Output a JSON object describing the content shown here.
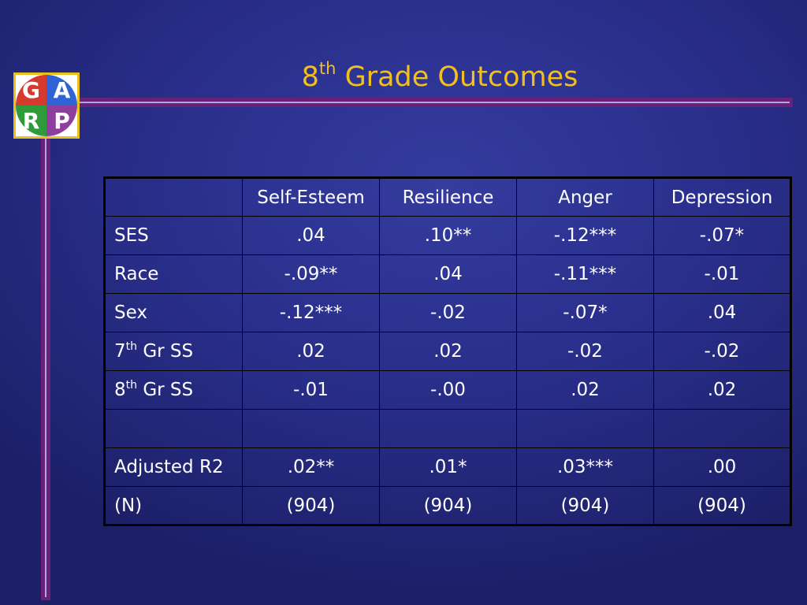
{
  "slide": {
    "title_main": "8",
    "title_sup": "th",
    "title_rest": " Grade Outcomes"
  },
  "logo": {
    "letters": [
      "G",
      "A",
      "R",
      "P"
    ],
    "colors": {
      "red": "#d63a2e",
      "blue": "#2f63d6",
      "green": "#2f9a3a",
      "purple": "#8e3f9e",
      "frame": "#e8c020"
    }
  },
  "theme": {
    "background": "#2a2f8c",
    "title_color": "#f2c01e",
    "frame_line": "#6a1f78"
  },
  "table": {
    "header": [
      "",
      "Self-Esteem",
      "Resilience",
      "Anger",
      "Depression"
    ],
    "rows": [
      {
        "label_main": "SES",
        "label_sup": "",
        "label_rest": "",
        "values": [
          ".04",
          ".10**",
          "-.12***",
          "-.07*"
        ]
      },
      {
        "label_main": "Race",
        "label_sup": "",
        "label_rest": "",
        "values": [
          "-.09**",
          ".04",
          "-.11***",
          "-.01"
        ]
      },
      {
        "label_main": "Sex",
        "label_sup": "",
        "label_rest": "",
        "values": [
          "-.12***",
          "-.02",
          "-.07*",
          ".04"
        ]
      },
      {
        "label_main": "7",
        "label_sup": "th",
        "label_rest": " Gr SS",
        "values": [
          ".02",
          ".02",
          "-.02",
          "-.02"
        ]
      },
      {
        "label_main": "8",
        "label_sup": "th",
        "label_rest": " Gr SS",
        "values": [
          "-.01",
          "-.00",
          ".02",
          ".02"
        ]
      },
      {
        "label_main": "",
        "label_sup": "",
        "label_rest": "",
        "values": [
          "",
          "",
          "",
          ""
        ]
      },
      {
        "label_main": "Adjusted R2",
        "label_sup": "",
        "label_rest": "",
        "values": [
          ".02**",
          ".01*",
          ".03***",
          ".00"
        ]
      },
      {
        "label_main": "(N)",
        "label_sup": "",
        "label_rest": "",
        "values": [
          "(904)",
          "(904)",
          "(904)",
          "(904)"
        ]
      }
    ]
  }
}
